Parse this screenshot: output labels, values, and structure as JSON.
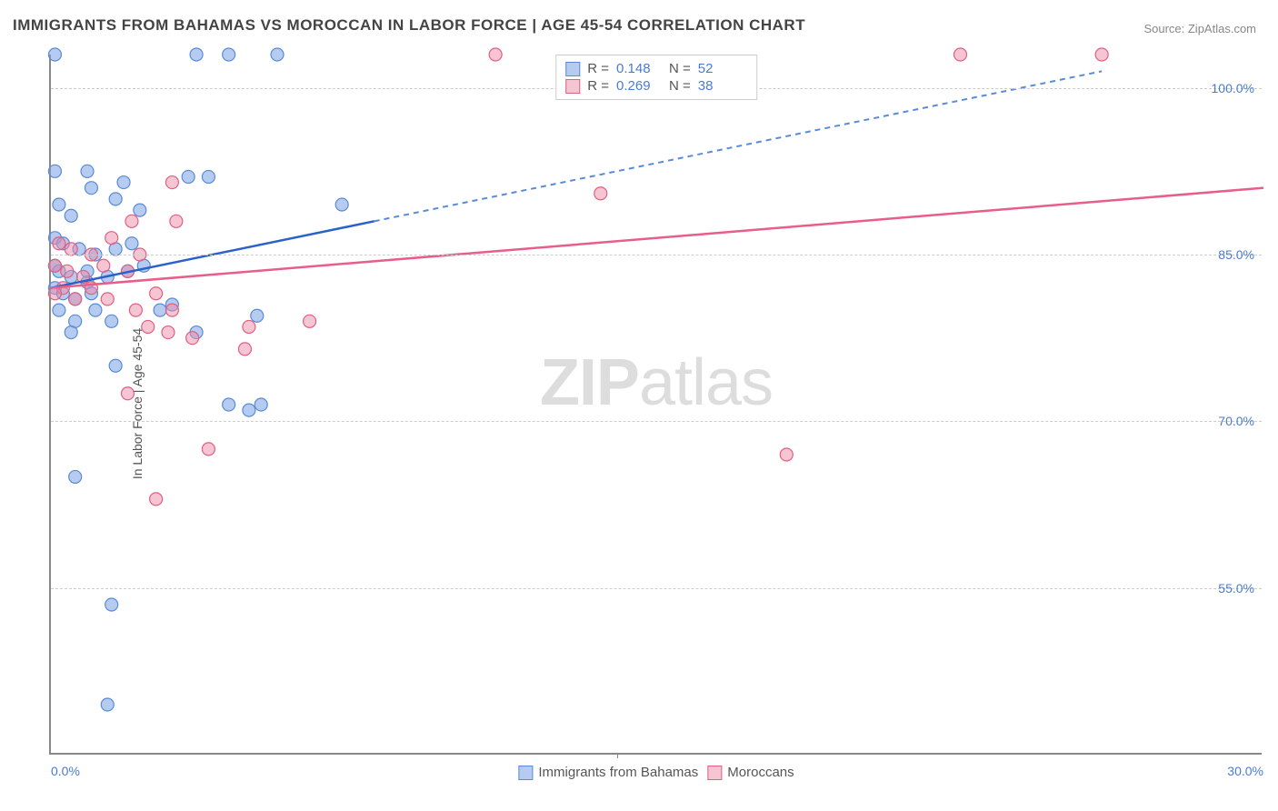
{
  "title": "IMMIGRANTS FROM BAHAMAS VS MOROCCAN IN LABOR FORCE | AGE 45-54 CORRELATION CHART",
  "source": "Source: ZipAtlas.com",
  "y_axis_label": "In Labor Force | Age 45-54",
  "watermark_a": "ZIP",
  "watermark_b": "atlas",
  "chart": {
    "type": "scatter",
    "x_domain": [
      0,
      30
    ],
    "y_domain": [
      40,
      103
    ],
    "y_ticks": [
      {
        "v": 55.0,
        "label": "55.0%"
      },
      {
        "v": 70.0,
        "label": "70.0%"
      },
      {
        "v": 85.0,
        "label": "85.0%"
      },
      {
        "v": 100.0,
        "label": "100.0%"
      }
    ],
    "x_ticks": [
      {
        "v": 0.0,
        "label": "0.0%",
        "align": "left"
      },
      {
        "v": 14.0,
        "label": ""
      },
      {
        "v": 30.0,
        "label": "30.0%",
        "align": "right"
      }
    ],
    "grid_color_dash": "#cccccc",
    "axis_color": "#888888",
    "tick_label_color": "#4a7bd4",
    "background": "#ffffff",
    "series": [
      {
        "name": "Immigrants from Bahamas",
        "color_fill": "rgba(120,160,225,0.55)",
        "color_stroke": "#5a8bd8",
        "marker_r": 7,
        "R": "0.148",
        "N": "52",
        "trend": {
          "solid": {
            "x1": 0,
            "y1": 82.0,
            "x2": 8,
            "y2": 88.0,
            "color": "#2a62c9",
            "width": 2.5
          },
          "dashed": {
            "x1": 8,
            "y1": 88.0,
            "x2": 26,
            "y2": 101.5,
            "color": "#5a8bd8",
            "width": 2,
            "dash": "6 5"
          }
        },
        "points": [
          [
            0.1,
            103
          ],
          [
            3.6,
            103
          ],
          [
            4.4,
            103
          ],
          [
            5.6,
            103
          ],
          [
            0.1,
            92.5
          ],
          [
            0.9,
            92.5
          ],
          [
            1.8,
            91.5
          ],
          [
            3.4,
            92.0
          ],
          [
            3.9,
            92.0
          ],
          [
            1.0,
            91.0
          ],
          [
            0.2,
            89.5
          ],
          [
            0.5,
            88.5
          ],
          [
            1.6,
            90.0
          ],
          [
            2.2,
            89.0
          ],
          [
            7.2,
            89.5
          ],
          [
            0.1,
            86.5
          ],
          [
            0.3,
            86.0
          ],
          [
            0.7,
            85.5
          ],
          [
            1.1,
            85.0
          ],
          [
            1.6,
            85.5
          ],
          [
            2.0,
            86.0
          ],
          [
            0.1,
            84.0
          ],
          [
            0.2,
            83.5
          ],
          [
            0.5,
            83.0
          ],
          [
            0.9,
            83.5
          ],
          [
            1.4,
            83.0
          ],
          [
            1.9,
            83.5
          ],
          [
            2.3,
            84.0
          ],
          [
            0.1,
            82.0
          ],
          [
            0.3,
            81.5
          ],
          [
            0.6,
            81.0
          ],
          [
            0.9,
            82.5
          ],
          [
            1.0,
            81.5
          ],
          [
            0.2,
            80.0
          ],
          [
            0.6,
            79.0
          ],
          [
            1.1,
            80.0
          ],
          [
            1.5,
            79.0
          ],
          [
            2.7,
            80.0
          ],
          [
            3.0,
            80.5
          ],
          [
            5.1,
            79.5
          ],
          [
            0.5,
            78.0
          ],
          [
            3.6,
            78.0
          ],
          [
            1.6,
            75.0
          ],
          [
            4.4,
            71.5
          ],
          [
            4.9,
            71.0
          ],
          [
            5.2,
            71.5
          ],
          [
            0.6,
            65.0
          ],
          [
            1.5,
            53.5
          ],
          [
            1.4,
            44.5
          ]
        ]
      },
      {
        "name": "Moroccans",
        "color_fill": "rgba(238,140,170,0.50)",
        "color_stroke": "#e0607f",
        "marker_r": 7,
        "R": "0.269",
        "N": "38",
        "trend": {
          "solid": {
            "x1": 0,
            "y1": 82.0,
            "x2": 30,
            "y2": 91.0,
            "color": "#e75f88",
            "width": 2.5
          }
        },
        "points": [
          [
            11.0,
            103
          ],
          [
            22.5,
            103
          ],
          [
            26.0,
            103
          ],
          [
            3.0,
            91.5
          ],
          [
            13.6,
            90.5
          ],
          [
            2.0,
            88.0
          ],
          [
            3.1,
            88.0
          ],
          [
            0.2,
            86.0
          ],
          [
            0.5,
            85.5
          ],
          [
            1.0,
            85.0
          ],
          [
            1.5,
            86.5
          ],
          [
            2.2,
            85.0
          ],
          [
            0.1,
            84.0
          ],
          [
            0.4,
            83.5
          ],
          [
            0.8,
            83.0
          ],
          [
            1.3,
            84.0
          ],
          [
            1.9,
            83.5
          ],
          [
            0.3,
            82.0
          ],
          [
            0.1,
            81.5
          ],
          [
            0.6,
            81.0
          ],
          [
            1.0,
            82.0
          ],
          [
            1.4,
            81.0
          ],
          [
            2.6,
            81.5
          ],
          [
            2.1,
            80.0
          ],
          [
            2.4,
            78.5
          ],
          [
            3.0,
            80.0
          ],
          [
            2.9,
            78.0
          ],
          [
            3.5,
            77.5
          ],
          [
            4.9,
            78.5
          ],
          [
            6.4,
            79.0
          ],
          [
            4.8,
            76.5
          ],
          [
            1.9,
            72.5
          ],
          [
            3.9,
            67.5
          ],
          [
            18.2,
            67.0
          ],
          [
            2.6,
            63.0
          ]
        ]
      }
    ]
  },
  "legend_bottom": [
    {
      "label": "Immigrants from Bahamas",
      "fill": "rgba(120,160,225,0.55)",
      "stroke": "#5a8bd8"
    },
    {
      "label": "Moroccans",
      "fill": "rgba(238,140,170,0.50)",
      "stroke": "#e0607f"
    }
  ]
}
